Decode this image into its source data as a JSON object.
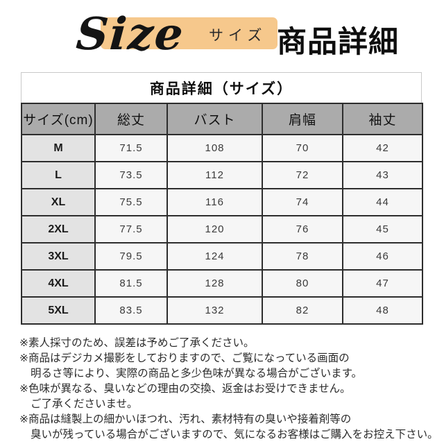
{
  "header": {
    "size_label": "Size",
    "size_kana": "サイズ",
    "detail_label": "商品詳細",
    "highlight_color": "#f6c88c"
  },
  "table": {
    "title": "商品詳細（サイズ）",
    "columns": [
      "サイズ(cm)",
      "総丈",
      "バスト",
      "肩幅",
      "袖丈"
    ],
    "rows": [
      {
        "size": "M",
        "values": [
          "71.5",
          "108",
          "70",
          "42"
        ]
      },
      {
        "size": "L",
        "values": [
          "73.5",
          "112",
          "72",
          "43"
        ]
      },
      {
        "size": "XL",
        "values": [
          "75.5",
          "116",
          "74",
          "44"
        ]
      },
      {
        "size": "2XL",
        "values": [
          "77.5",
          "120",
          "76",
          "45"
        ]
      },
      {
        "size": "3XL",
        "values": [
          "79.5",
          "124",
          "78",
          "46"
        ]
      },
      {
        "size": "4XL",
        "values": [
          "81.5",
          "128",
          "80",
          "47"
        ]
      },
      {
        "size": "5XL",
        "values": [
          "83.5",
          "132",
          "82",
          "48"
        ]
      }
    ],
    "colors": {
      "header_bg": "#ababab",
      "size_col_bg": "#e3e3e3",
      "cell_bg": "#f6f6f6",
      "border": "#2d2d2d"
    }
  },
  "notes": [
    {
      "text": "※素人採寸のため、誤差は予めご了承ください。",
      "indent": false
    },
    {
      "text": "※商品はデジカメ撮影をしておりますので、ご覧になっている画面の",
      "indent": false
    },
    {
      "text": "明るさ等により、実際の商品と多少色味が異なる場合がございます。",
      "indent": true
    },
    {
      "text": "※色味が異なる、臭いなどの理由の交換、返金はお受けできません。",
      "indent": false
    },
    {
      "text": "ご了承くださいませ。",
      "indent": true
    },
    {
      "text": "※商品は縫製上の細かいほつれ、汚れ、素材特有の臭いや接着剤等の",
      "indent": false
    },
    {
      "text": "臭いが残っている場合がございますので、気になるお客様はご購入をお控え下さい。",
      "indent": true
    }
  ]
}
